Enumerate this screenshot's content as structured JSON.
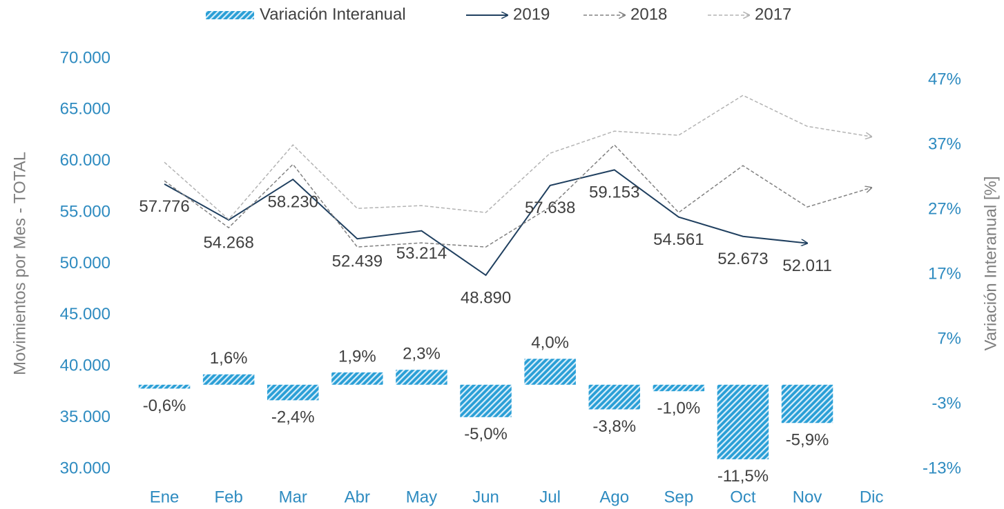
{
  "chart_data": {
    "type": "combo",
    "categories": [
      "Ene",
      "Feb",
      "Mar",
      "Abr",
      "May",
      "Jun",
      "Jul",
      "Ago",
      "Sep",
      "Oct",
      "Nov",
      "Dic"
    ],
    "series": [
      {
        "name": "Variación Interanual",
        "type": "bar",
        "axis": "y2",
        "color": "#2a9fd6",
        "values": [
          -0.6,
          1.6,
          -2.4,
          1.9,
          2.3,
          -5.0,
          4.0,
          -3.8,
          -1.0,
          -11.5,
          -5.9,
          null
        ],
        "value_labels": [
          "-0,6%",
          "1,6%",
          "-2,4%",
          "1,9%",
          "2,3%",
          "-5,0%",
          "4,0%",
          "-3,8%",
          "-1,0%",
          "-11,5%",
          "-5,9%",
          null
        ]
      },
      {
        "name": "2019",
        "type": "line",
        "color": "#1f3f5f",
        "dashed": false,
        "values": [
          57776,
          54268,
          58230,
          52439,
          53214,
          48890,
          57638,
          59153,
          54561,
          52673,
          52011,
          null
        ],
        "value_labels": [
          "57.776",
          "54.268",
          "58.230",
          "52.439",
          "53.214",
          "48.890",
          "57.638",
          "59.153",
          "54.561",
          "52.673",
          "52.011",
          null
        ]
      },
      {
        "name": "2018",
        "type": "line",
        "color": "#808080",
        "dashed": true,
        "values": [
          58090,
          53520,
          59700,
          51640,
          52040,
          51640,
          55540,
          61590,
          55000,
          59570,
          55540,
          57420
        ]
      },
      {
        "name": "2017",
        "type": "line",
        "color": "#b3b3b3",
        "dashed": true,
        "values": [
          59900,
          54330,
          61590,
          55400,
          55670,
          55000,
          60780,
          62930,
          62530,
          66420,
          63400,
          62390
        ]
      }
    ],
    "ylabel": "Movimientos por Mes - TOTAL",
    "y2label": "Variación Interanual [%]",
    "ylim": [
      30000,
      70000
    ],
    "yticks": [
      {
        "value": 30000,
        "label": "30.000"
      },
      {
        "value": 35000,
        "label": "35.000"
      },
      {
        "value": 40000,
        "label": "40.000"
      },
      {
        "value": 45000,
        "label": "45.000"
      },
      {
        "value": 50000,
        "label": "50.000"
      },
      {
        "value": 55000,
        "label": "55.000"
      },
      {
        "value": 60000,
        "label": "60.000"
      },
      {
        "value": 65000,
        "label": "65.000"
      },
      {
        "value": 70000,
        "label": "70.000"
      }
    ],
    "y2lim": [
      -13,
      50.3
    ],
    "y2ticks": [
      {
        "value": -13,
        "label": "-13%"
      },
      {
        "value": -3,
        "label": "-3%"
      },
      {
        "value": 7,
        "label": "7%"
      },
      {
        "value": 17,
        "label": "17%"
      },
      {
        "value": 27,
        "label": "27%"
      },
      {
        "value": 37,
        "label": "37%"
      },
      {
        "value": 47,
        "label": "47%"
      }
    ],
    "grid": false
  }
}
